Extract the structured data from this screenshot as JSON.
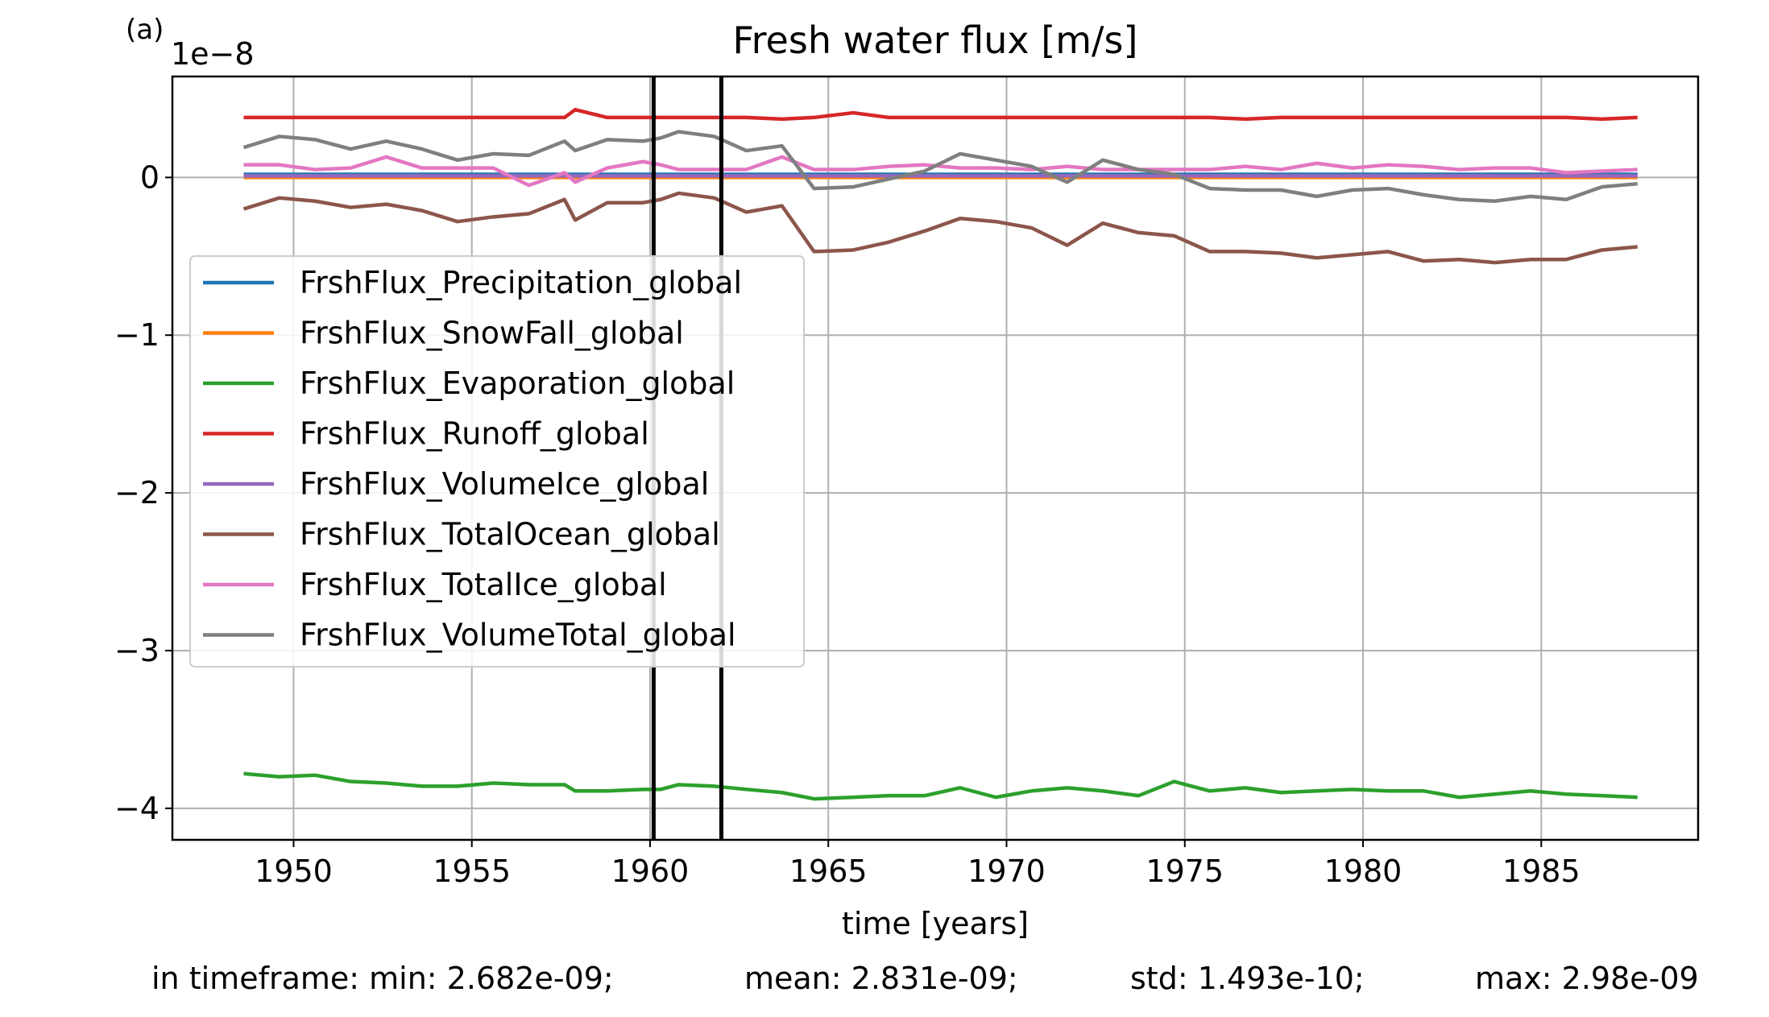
{
  "chart_data": {
    "type": "line",
    "panel_label": "(a)",
    "title": "Fresh water flux [m/s]",
    "xlabel": "time [years]",
    "ylabel": "",
    "y_scale_label": "1e−8",
    "xlim": [
      1946.6,
      1989.4
    ],
    "ylim": [
      -4.2,
      0.64
    ],
    "xticks": [
      1950,
      1955,
      1960,
      1965,
      1970,
      1975,
      1980,
      1985
    ],
    "yticks": [
      0,
      -1,
      -2,
      -3,
      -4
    ],
    "ytick_labels": [
      "0",
      "−1",
      "−2",
      "−3",
      "−4"
    ],
    "grid": true,
    "legend_position": "center-left",
    "vlines": [
      1960.1,
      1962.0
    ],
    "x": [
      1948.6,
      1949.6,
      1950.6,
      1951.6,
      1952.6,
      1953.6,
      1954.6,
      1955.6,
      1956.6,
      1957.6,
      1957.9,
      1958.8,
      1959.8,
      1960.3,
      1960.8,
      1961.8,
      1962.7,
      1963.7,
      1964.6,
      1965.7,
      1966.7,
      1967.7,
      1968.7,
      1969.7,
      1970.7,
      1971.7,
      1972.7,
      1973.7,
      1974.7,
      1975.7,
      1976.7,
      1977.7,
      1978.7,
      1979.7,
      1980.7,
      1981.7,
      1982.7,
      1983.7,
      1984.7,
      1985.7,
      1986.7,
      1987.7
    ],
    "series": [
      {
        "name": "FrshFlux_Precipitation_global",
        "color": "#1f77b4",
        "values": [
          0.02,
          0.02,
          0.02,
          0.02,
          0.02,
          0.02,
          0.02,
          0.02,
          0.02,
          0.02,
          0.02,
          0.02,
          0.02,
          0.02,
          0.02,
          0.02,
          0.02,
          0.02,
          0.02,
          0.02,
          0.02,
          0.02,
          0.02,
          0.02,
          0.02,
          0.02,
          0.02,
          0.02,
          0.02,
          0.02,
          0.02,
          0.02,
          0.02,
          0.02,
          0.02,
          0.02,
          0.02,
          0.02,
          0.02,
          0.02,
          0.02,
          0.02
        ]
      },
      {
        "name": "FrshFlux_SnowFall_global",
        "color": "#ff7f0e",
        "values": [
          0,
          0,
          0,
          0,
          0,
          0,
          0,
          0,
          0,
          0,
          0,
          0,
          0,
          0,
          0,
          0,
          0,
          0,
          0,
          0,
          0,
          0,
          0,
          0,
          0,
          0,
          0,
          0,
          0,
          0,
          0,
          0,
          0,
          0,
          0,
          0,
          0,
          0,
          0,
          0,
          0,
          0
        ]
      },
      {
        "name": "FrshFlux_Evaporation_global",
        "color": "#2ca02c",
        "values": [
          -3.78,
          -3.8,
          -3.79,
          -3.83,
          -3.84,
          -3.86,
          -3.86,
          -3.84,
          -3.85,
          -3.85,
          -3.89,
          -3.89,
          -3.88,
          -3.88,
          -3.85,
          -3.86,
          -3.88,
          -3.9,
          -3.94,
          -3.93,
          -3.92,
          -3.92,
          -3.87,
          -3.93,
          -3.89,
          -3.87,
          -3.89,
          -3.92,
          -3.83,
          -3.89,
          -3.87,
          -3.9,
          -3.89,
          -3.88,
          -3.89,
          -3.89,
          -3.93,
          -3.91,
          -3.89,
          -3.91,
          -3.92,
          -3.93
        ]
      },
      {
        "name": "FrshFlux_Runoff_global",
        "color": "#d62728",
        "values": [
          0.38,
          0.38,
          0.38,
          0.38,
          0.38,
          0.38,
          0.38,
          0.38,
          0.38,
          0.38,
          0.43,
          0.38,
          0.38,
          0.38,
          0.38,
          0.38,
          0.38,
          0.37,
          0.38,
          0.41,
          0.38,
          0.38,
          0.38,
          0.38,
          0.38,
          0.38,
          0.38,
          0.38,
          0.38,
          0.38,
          0.37,
          0.38,
          0.38,
          0.38,
          0.38,
          0.38,
          0.38,
          0.38,
          0.38,
          0.38,
          0.37,
          0.38
        ]
      },
      {
        "name": "FrshFlux_VolumeIce_global",
        "color": "#9467bd",
        "values": [
          0.01,
          0.01,
          0.01,
          0.01,
          0.01,
          0.01,
          0.01,
          0.01,
          0.01,
          0.01,
          0.01,
          0.01,
          0.01,
          0.01,
          0.01,
          0.01,
          0.01,
          0.01,
          0.01,
          0.01,
          0.01,
          0.01,
          0.01,
          0.01,
          0.01,
          0.01,
          0.01,
          0.01,
          0.01,
          0.01,
          0.01,
          0.01,
          0.01,
          0.01,
          0.01,
          0.01,
          0.01,
          0.01,
          0.01,
          0.01,
          0.01,
          0.01
        ]
      },
      {
        "name": "FrshFlux_TotalOcean_global",
        "color": "#8c564b",
        "values": [
          -0.2,
          -0.13,
          -0.15,
          -0.19,
          -0.17,
          -0.21,
          -0.28,
          -0.25,
          -0.23,
          -0.14,
          -0.27,
          -0.16,
          -0.16,
          -0.14,
          -0.1,
          -0.13,
          -0.22,
          -0.18,
          -0.47,
          -0.46,
          -0.41,
          -0.34,
          -0.26,
          -0.28,
          -0.32,
          -0.43,
          -0.29,
          -0.35,
          -0.37,
          -0.47,
          -0.47,
          -0.48,
          -0.51,
          -0.49,
          -0.47,
          -0.53,
          -0.52,
          -0.54,
          -0.52,
          -0.52,
          -0.46,
          -0.44
        ]
      },
      {
        "name": "FrshFlux_TotalIce_global",
        "color": "#e377c2",
        "values": [
          0.08,
          0.08,
          0.05,
          0.06,
          0.13,
          0.06,
          0.06,
          0.06,
          -0.05,
          0.03,
          -0.03,
          0.06,
          0.1,
          0.08,
          0.05,
          0.05,
          0.05,
          0.13,
          0.05,
          0.05,
          0.07,
          0.08,
          0.06,
          0.06,
          0.05,
          0.07,
          0.05,
          0.05,
          0.05,
          0.05,
          0.07,
          0.05,
          0.09,
          0.06,
          0.08,
          0.07,
          0.05,
          0.06,
          0.06,
          0.03,
          0.04,
          0.05
        ]
      },
      {
        "name": "FrshFlux_VolumeTotal_global",
        "color": "#7f7f7f",
        "values": [
          0.19,
          0.26,
          0.24,
          0.18,
          0.23,
          0.18,
          0.11,
          0.15,
          0.14,
          0.23,
          0.17,
          0.24,
          0.23,
          0.25,
          0.29,
          0.26,
          0.17,
          0.2,
          -0.07,
          -0.06,
          -0.01,
          0.04,
          0.15,
          0.11,
          0.07,
          -0.03,
          0.11,
          0.05,
          0.02,
          -0.07,
          -0.08,
          -0.08,
          -0.12,
          -0.08,
          -0.07,
          -0.11,
          -0.14,
          -0.15,
          -0.12,
          -0.14,
          -0.06,
          -0.04
        ]
      }
    ]
  },
  "stats": {
    "min": "in timeframe: min: 2.682e-09;",
    "mean": "mean: 2.831e-09;",
    "std": "std: 1.493e-10;",
    "max": "max: 2.98e-09"
  }
}
